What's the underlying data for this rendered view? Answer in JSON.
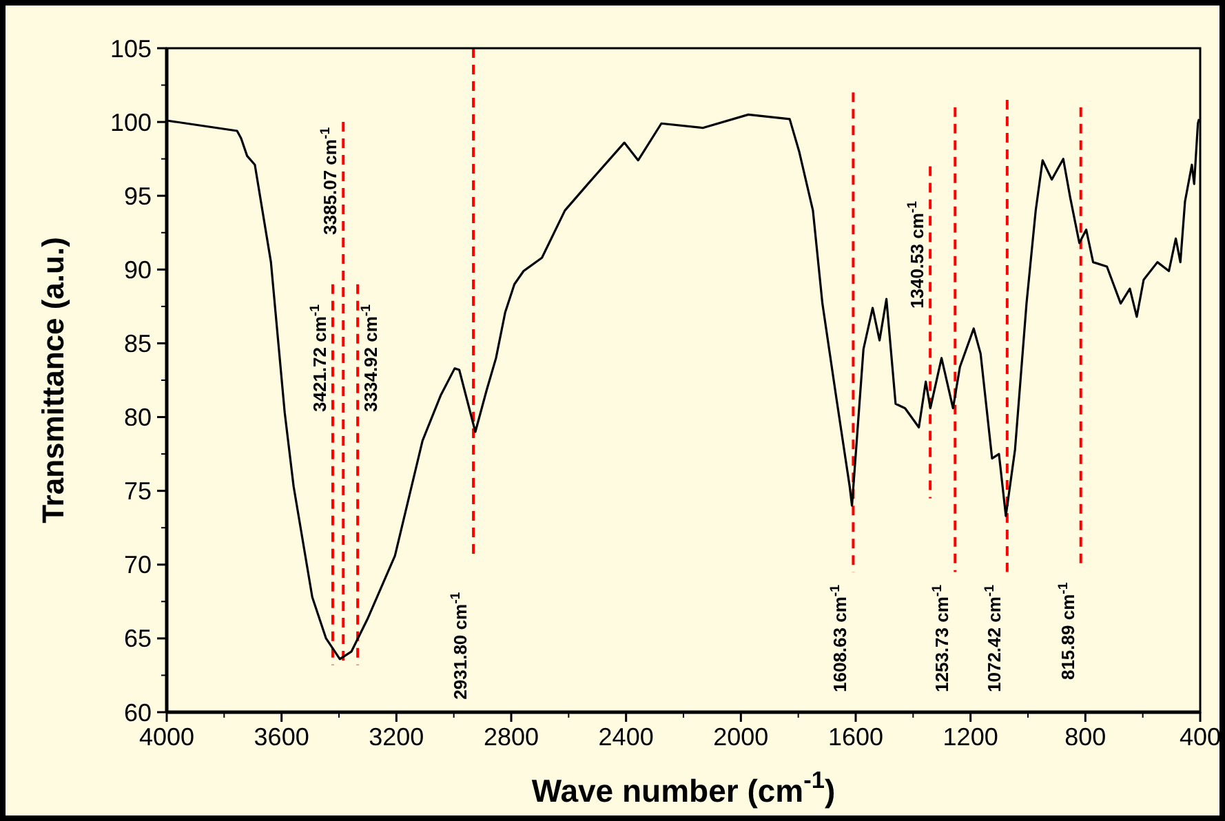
{
  "chart_data": {
    "type": "line",
    "xlabel": "Wave number (cm$^{-1}$)",
    "ylabel": "Transmittance (a.u.)",
    "xlim": [
      4000,
      400
    ],
    "xticks": [
      4000,
      3600,
      3200,
      2800,
      2400,
      2000,
      1600,
      1200,
      800,
      400
    ],
    "ylim": [
      60,
      105
    ],
    "yticks": [
      60,
      65,
      70,
      75,
      80,
      85,
      90,
      95,
      100,
      105
    ],
    "grid": false,
    "marker": "none",
    "line_style": "solid",
    "series": [
      {
        "color": "#000000",
        "x": [
          4000,
          3861,
          3755,
          3741,
          3720,
          3693,
          3637,
          3589,
          3558,
          3493,
          3445,
          3397,
          3357,
          3301,
          3205,
          3109,
          3045,
          2997,
          2981,
          2925,
          2886,
          2853,
          2821,
          2789,
          2757,
          2693,
          2613,
          2533,
          2406,
          2358,
          2277,
          2133,
          1974,
          1830,
          1797,
          1749,
          1716,
          1669,
          1621,
          1613,
          1573,
          1541,
          1517,
          1493,
          1461,
          1428,
          1380,
          1356,
          1340,
          1301,
          1261,
          1237,
          1189,
          1165,
          1125,
          1101,
          1077,
          1045,
          1005,
          973,
          949,
          917,
          877,
          853,
          821,
          797,
          773,
          725,
          677,
          645,
          621,
          597,
          549,
          509,
          485,
          469,
          453,
          429,
          421,
          408,
          404
        ],
        "values": [
          100.1,
          99.7,
          99.4,
          98.9,
          97.7,
          97.1,
          90.5,
          80.3,
          75.3,
          67.8,
          65.0,
          63.6,
          64.1,
          66.3,
          70.6,
          78.4,
          81.5,
          83.3,
          83.2,
          79.0,
          81.8,
          84.0,
          87.1,
          89.0,
          89.9,
          90.8,
          94.0,
          95.8,
          98.6,
          97.4,
          99.9,
          99.6,
          100.5,
          100.2,
          98.0,
          94.0,
          87.7,
          81.5,
          75.3,
          74.0,
          84.6,
          87.4,
          85.2,
          88.0,
          80.9,
          80.6,
          79.3,
          82.4,
          80.6,
          84.0,
          80.6,
          83.4,
          86.0,
          84.3,
          77.2,
          77.5,
          73.3,
          77.8,
          87.7,
          94.0,
          97.4,
          96.1,
          97.5,
          94.9,
          91.8,
          92.7,
          90.5,
          90.2,
          87.7,
          88.7,
          86.8,
          89.3,
          90.5,
          89.9,
          92.1,
          90.5,
          94.6,
          97.1,
          95.8,
          99.9,
          100.2
        ]
      }
    ],
    "ref_lines": [
      {
        "axis": "x",
        "value": 3421.72,
        "label": "3421.72 cm$^{-1}$",
        "color": "#ff0000",
        "line_style": "dashed"
      },
      {
        "axis": "x",
        "value": 3385.07,
        "label": "3385.07 cm$^{-1}$",
        "color": "#ff0000",
        "line_style": "dashed"
      },
      {
        "axis": "x",
        "value": 3334.92,
        "label": "3334.92 cm$^{-1}$",
        "color": "#ff0000",
        "line_style": "dashed"
      },
      {
        "axis": "x",
        "value": 2931.8,
        "label": "2931.80 cm$^{-1}$",
        "color": "#ff0000",
        "line_style": "dashed"
      },
      {
        "axis": "x",
        "value": 1608.63,
        "label": "1608.63 cm$^{-1}$",
        "color": "#ff0000",
        "line_style": "dashed"
      },
      {
        "axis": "x",
        "value": 1340.53,
        "label": "1340.53 cm$^{-1}$",
        "color": "#ff0000",
        "line_style": "dashed"
      },
      {
        "axis": "x",
        "value": 1253.73,
        "label": "1253.73 cm$^{-1}$",
        "color": "#ff0000",
        "line_style": "dashed"
      },
      {
        "axis": "x",
        "value": 1072.42,
        "label": "1072.42 cm$^{-1}$",
        "color": "#ff0000",
        "line_style": "dashed"
      },
      {
        "axis": "x",
        "value": 815.89,
        "label": "815.89 cm$^{-1}$",
        "color": "#ff0000",
        "line_style": "dashed"
      }
    ]
  }
}
